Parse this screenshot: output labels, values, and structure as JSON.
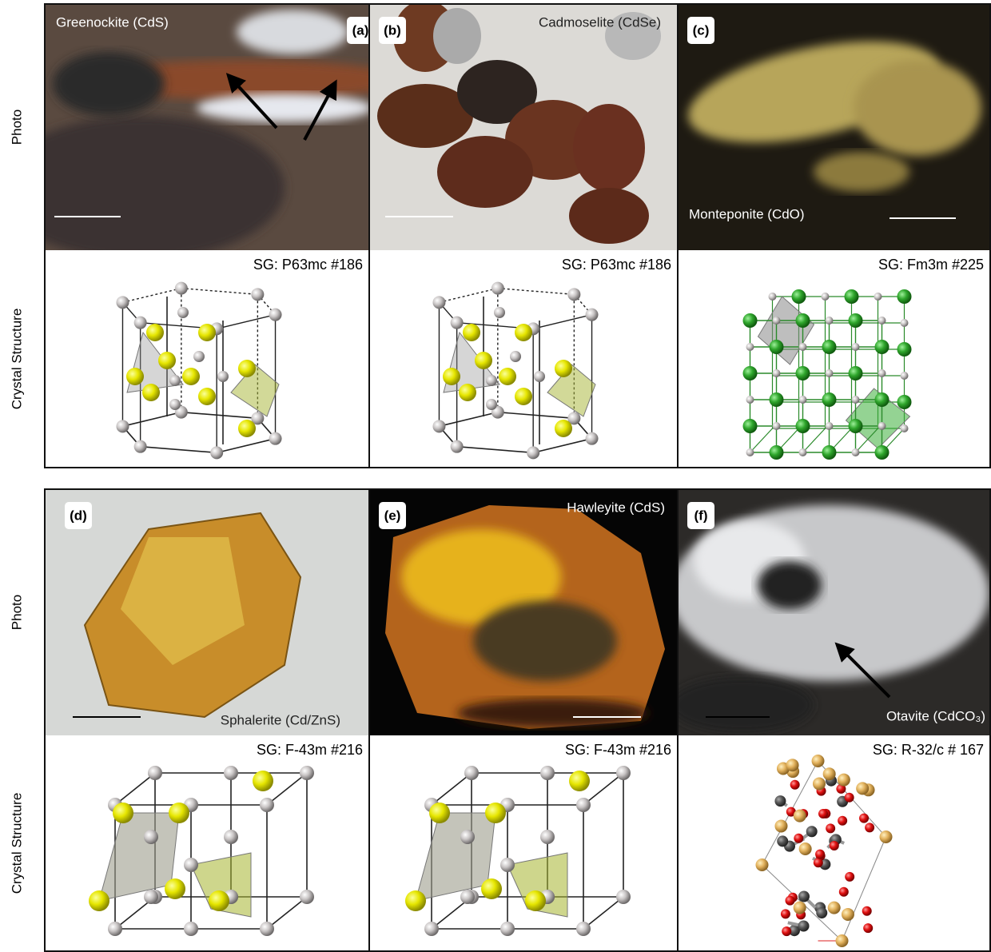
{
  "row_labels": {
    "photo": "Photo",
    "structure": "Crystal Structure"
  },
  "panels": [
    {
      "label": "(a)",
      "mineral": "Greenockite (CdS)",
      "space_group": "SG: P63mc #186"
    },
    {
      "label": "(b)",
      "mineral": "Cadmoselite (CdSe)",
      "space_group": "SG: P63mc #186"
    },
    {
      "label": "(c)",
      "mineral": "Monteponite (CdO)",
      "space_group": "SG: Fm3m #225"
    },
    {
      "label": "(d)",
      "mineral": "Sphalerite (Cd/ZnS)",
      "space_group": "SG: F-43m #216"
    },
    {
      "label": "(e)",
      "mineral": "Hawleyite (CdS)",
      "space_group": "SG: F-43m #216"
    },
    {
      "label": "(f)",
      "mineral": "Otavite (CdCO₃)",
      "space_group": "SG: R-32/c # 167"
    }
  ]
}
